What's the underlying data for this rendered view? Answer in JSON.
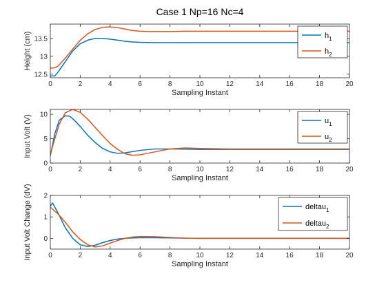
{
  "title": "Case 1 Np=16 Nc=4",
  "colors": {
    "series1": "#0072BD",
    "series2": "#D95319",
    "axis": "#262626"
  },
  "chart_data": [
    {
      "type": "line",
      "xlabel": "Sampling Instant",
      "ylabel": "Height (cm)",
      "xlim": [
        0,
        20
      ],
      "ylim": [
        12.4,
        13.9
      ],
      "xticks": [
        "0",
        "2",
        "4",
        "6",
        "8",
        "10",
        "12",
        "14",
        "16",
        "18",
        "20"
      ],
      "yticks": [
        "12.5",
        "13",
        "13.5"
      ],
      "ytick_values": [
        12.5,
        13,
        13.5
      ],
      "legend": "top-right",
      "series": [
        {
          "name": "h",
          "sub": "1",
          "x": [
            0,
            0.3,
            0.5,
            1,
            1.5,
            2,
            2.5,
            3,
            3.5,
            4,
            4.5,
            5,
            5.5,
            6,
            7,
            8,
            10,
            12,
            14,
            16,
            18,
            20
          ],
          "y": [
            12.45,
            12.45,
            12.55,
            12.85,
            13.15,
            13.35,
            13.45,
            13.5,
            13.5,
            13.48,
            13.45,
            13.42,
            13.4,
            13.39,
            13.38,
            13.38,
            13.38,
            13.38,
            13.38,
            13.38,
            13.38,
            13.38
          ]
        },
        {
          "name": "h",
          "sub": "2",
          "x": [
            0,
            0.3,
            0.5,
            1,
            1.5,
            2,
            2.5,
            3,
            3.5,
            4,
            4.5,
            5,
            5.5,
            6,
            6.5,
            7,
            8,
            9,
            10,
            12,
            14,
            16,
            18,
            20
          ],
          "y": [
            12.67,
            12.68,
            12.72,
            12.95,
            13.2,
            13.45,
            13.63,
            13.75,
            13.81,
            13.82,
            13.8,
            13.76,
            13.72,
            13.7,
            13.69,
            13.69,
            13.69,
            13.7,
            13.7,
            13.7,
            13.7,
            13.7,
            13.7,
            13.7
          ]
        }
      ]
    },
    {
      "type": "line",
      "xlabel": "Sampling Instant",
      "ylabel": "Input Volt (V)",
      "xlim": [
        0,
        20
      ],
      "ylim": [
        0,
        11
      ],
      "xticks": [
        "0",
        "2",
        "4",
        "6",
        "8",
        "10",
        "12",
        "14",
        "16",
        "18",
        "20"
      ],
      "yticks": [
        "0",
        "5",
        "10"
      ],
      "ytick_values": [
        0,
        5,
        10
      ],
      "legend": "top-right",
      "series": [
        {
          "name": "u",
          "sub": "1",
          "x": [
            0,
            0.3,
            0.6,
            1,
            1.3,
            1.6,
            2,
            2.5,
            3,
            3.5,
            4,
            4.5,
            5,
            6,
            7,
            8,
            10,
            12,
            14,
            16,
            18,
            20
          ],
          "y": [
            1.5,
            6.0,
            8.8,
            9.7,
            9.6,
            8.8,
            7.5,
            5.7,
            4.2,
            3.0,
            2.3,
            2.0,
            2.1,
            2.6,
            2.9,
            2.9,
            2.8,
            2.8,
            2.8,
            2.8,
            2.8,
            2.8
          ]
        },
        {
          "name": "u",
          "sub": "2",
          "x": [
            0,
            0.3,
            0.6,
            1,
            1.5,
            2,
            2.5,
            3,
            3.5,
            4,
            4.5,
            5,
            5.5,
            6,
            7,
            8,
            9,
            10,
            12,
            14,
            16,
            18,
            20
          ],
          "y": [
            1.8,
            5.0,
            8.0,
            10.3,
            11.0,
            10.4,
            9.0,
            7.3,
            5.6,
            4.0,
            2.8,
            1.9,
            1.6,
            1.7,
            2.3,
            2.9,
            3.1,
            3.0,
            2.9,
            2.9,
            2.9,
            2.9,
            2.9
          ]
        }
      ]
    },
    {
      "type": "line",
      "xlabel": "Sampling Instant",
      "ylabel": "Input Volt Change (dV)",
      "xlim": [
        0,
        20
      ],
      "ylim": [
        -0.5,
        2
      ],
      "xticks": [
        "0",
        "2",
        "4",
        "6",
        "8",
        "10",
        "12",
        "14",
        "16",
        "18",
        "20"
      ],
      "yticks": [
        "0",
        "1",
        "2"
      ],
      "ytick_values": [
        0,
        1,
        2
      ],
      "legend": "top-right",
      "series": [
        {
          "name": "deltau",
          "sub": "1",
          "x": [
            0,
            0.15,
            0.5,
            1,
            1.5,
            2,
            2.5,
            3,
            3.5,
            4,
            4.5,
            5,
            5.5,
            6,
            7,
            8,
            9,
            10,
            12,
            14,
            16,
            18,
            20
          ],
          "y": [
            1.5,
            1.65,
            1.2,
            0.5,
            0.0,
            -0.3,
            -0.38,
            -0.32,
            -0.2,
            -0.1,
            -0.03,
            0.0,
            0.02,
            0.03,
            0.03,
            0.02,
            0.01,
            0.0,
            0.0,
            0.0,
            0.0,
            0.0,
            0.0
          ]
        },
        {
          "name": "deltau",
          "sub": "2",
          "x": [
            0,
            0.5,
            1,
            1.5,
            2,
            2.5,
            3,
            3.5,
            4,
            4.5,
            5,
            5.5,
            6,
            7,
            8,
            9,
            10,
            12,
            14,
            16,
            18,
            20
          ],
          "y": [
            1.45,
            1.15,
            0.75,
            0.3,
            -0.05,
            -0.3,
            -0.4,
            -0.35,
            -0.22,
            -0.1,
            0.0,
            0.06,
            0.09,
            0.08,
            0.04,
            0.01,
            0.0,
            0.0,
            0.0,
            0.0,
            0.0,
            0.0
          ]
        }
      ]
    }
  ]
}
